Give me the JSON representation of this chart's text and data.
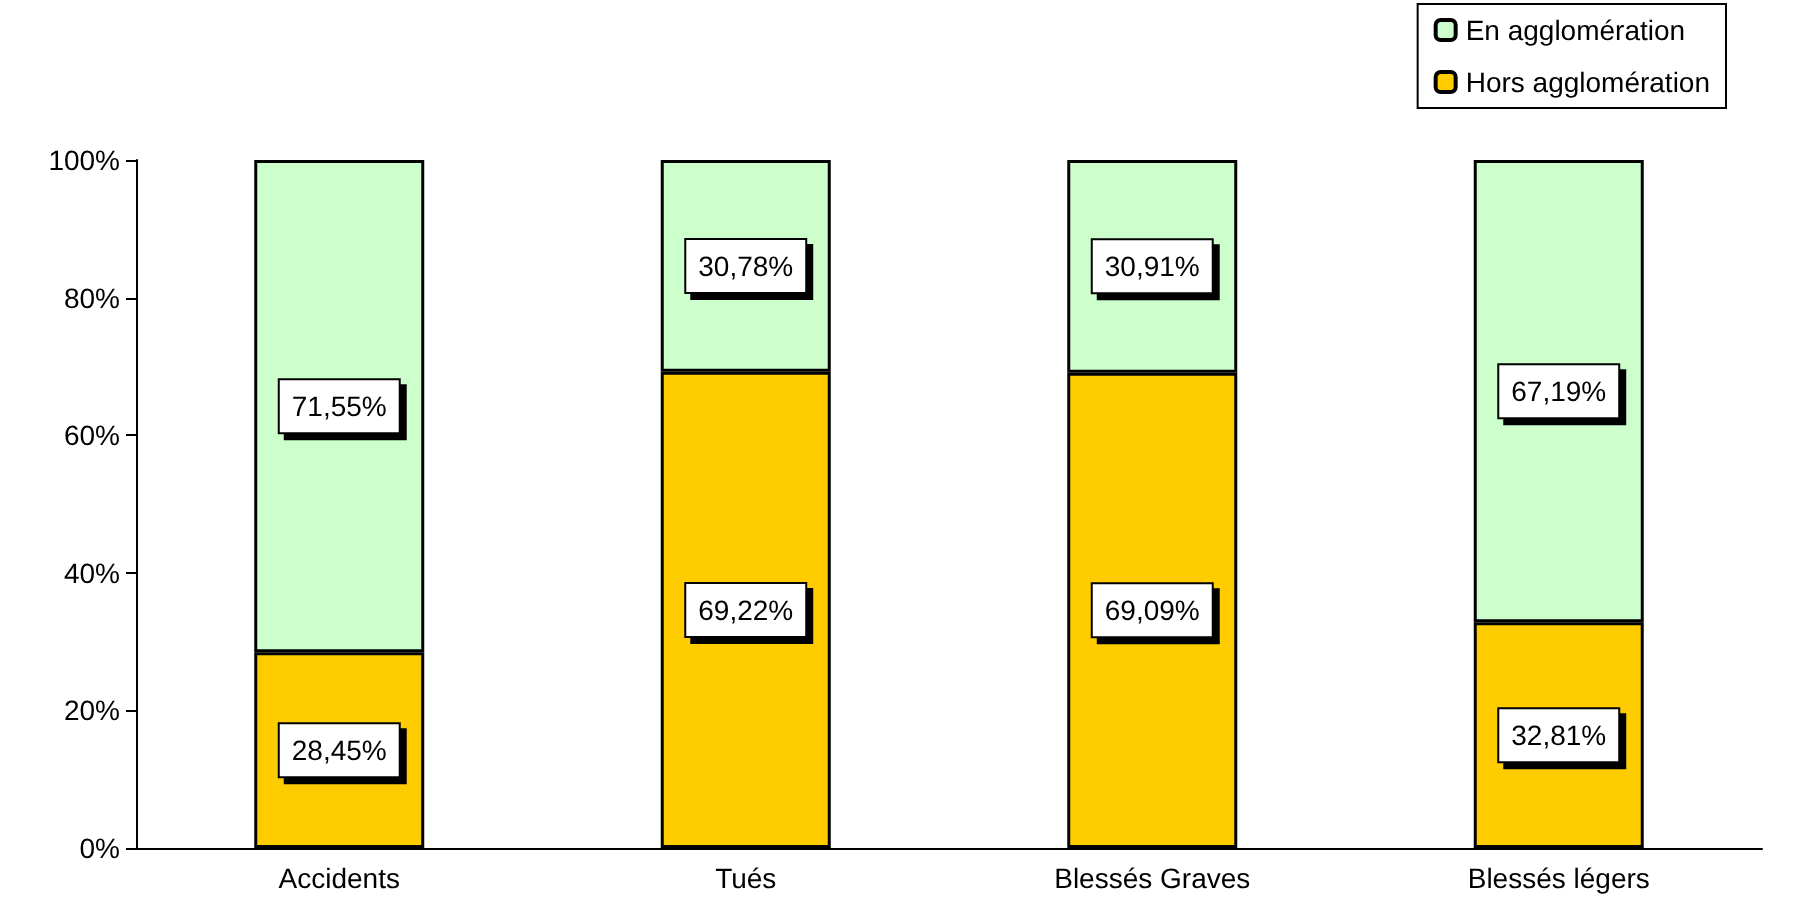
{
  "chart_data": {
    "type": "bar",
    "stacked": true,
    "categories": [
      "Accidents",
      "Tués",
      "Blessés Graves",
      "Blessés légers"
    ],
    "series": [
      {
        "name": "Hors agglomération",
        "color": "#ffcc00",
        "values": [
          28.45,
          69.22,
          69.09,
          32.81
        ],
        "value_labels": [
          "28,45%",
          "69,22%",
          "69,09%",
          "32,81%"
        ]
      },
      {
        "name": "En agglomération",
        "color": "#ccffcc",
        "values": [
          71.55,
          30.78,
          30.91,
          67.19
        ],
        "value_labels": [
          "71,55%",
          "30,78%",
          "30,91%",
          "67,19%"
        ]
      }
    ],
    "ylim": [
      0,
      100
    ],
    "yticks": [
      {
        "value": 0,
        "label": "0%"
      },
      {
        "value": 20,
        "label": "20%"
      },
      {
        "value": 40,
        "label": "40%"
      },
      {
        "value": 60,
        "label": "60%"
      },
      {
        "value": 80,
        "label": "80%"
      },
      {
        "value": 100,
        "label": "100%"
      }
    ],
    "grid": false,
    "legend": "top right"
  }
}
